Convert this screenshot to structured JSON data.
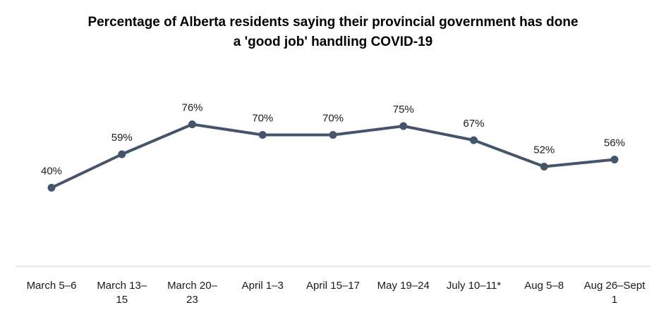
{
  "chart_data": {
    "type": "line",
    "title_lines": [
      "Percentage of Alberta residents saying their provincial government has done",
      "a 'good job' handling COVID-19"
    ],
    "categories": [
      [
        "March 5–6"
      ],
      [
        "March 13–",
        "15"
      ],
      [
        "March 20–",
        "23"
      ],
      [
        "April 1–3"
      ],
      [
        "April 15–17"
      ],
      [
        "May 19–24"
      ],
      [
        "July 10–11*"
      ],
      [
        "Aug 5–8"
      ],
      [
        "Aug 26–Sept",
        "1"
      ]
    ],
    "values": [
      40,
      59,
      76,
      70,
      70,
      75,
      67,
      52,
      56
    ],
    "data_labels": [
      "40%",
      "59%",
      "76%",
      "70%",
      "70%",
      "75%",
      "67%",
      "52%",
      "56%"
    ],
    "ylim": [
      0,
      100
    ],
    "grid": false,
    "legend": "none",
    "line_color": "#44546a"
  }
}
